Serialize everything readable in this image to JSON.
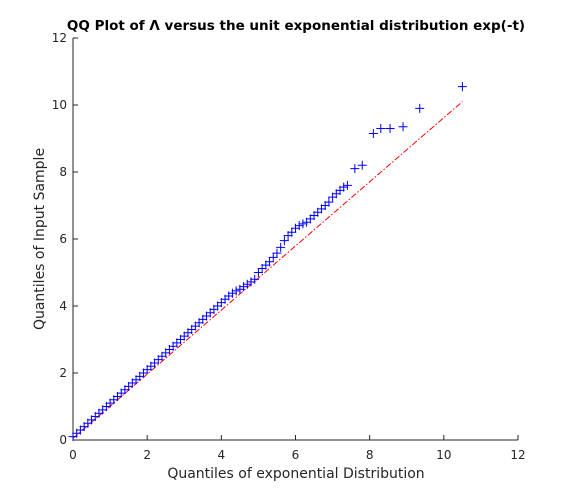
{
  "chart_data": {
    "type": "scatter",
    "title": "QQ Plot of Λ versus the unit exponential distribution exp(-t)",
    "xlabel": "Quantiles of exponential Distribution",
    "ylabel": "Quantiles of Input Sample",
    "color": "#0000ff",
    "marker": "+",
    "x": [
      0,
      0.1,
      0.2,
      0.3,
      0.4,
      0.5,
      0.6,
      0.7,
      0.8,
      0.9,
      1,
      1.1,
      1.2,
      1.3,
      1.4,
      1.5,
      1.6,
      1.7,
      1.8,
      1.9,
      2,
      2.1,
      2.2,
      2.3,
      2.4,
      2.5,
      2.6,
      2.7,
      2.8,
      2.9,
      3,
      3.1,
      3.2,
      3.3,
      3.4,
      3.5,
      3.6,
      3.7,
      3.8,
      3.9,
      4,
      4.1,
      4.2,
      4.3,
      4.4,
      4.5,
      4.6,
      4.7,
      4.8,
      4.9,
      5,
      5.1,
      5.2,
      5.3,
      5.4,
      5.5,
      5.6,
      5.7,
      5.8,
      5.9,
      6,
      6.1,
      6.2,
      6.3,
      6.4,
      6.5,
      6.6,
      6.7,
      6.8,
      6.9,
      7,
      7.1,
      7.2,
      7.3,
      7.4,
      7.6,
      7.8,
      8.1,
      8.3,
      8.55,
      8.9,
      9.35,
      10.5
    ],
    "y": [
      0.1,
      0.2,
      0.3,
      0.4,
      0.5,
      0.6,
      0.7,
      0.8,
      0.9,
      1,
      1.1,
      1.2,
      1.3,
      1.4,
      1.5,
      1.6,
      1.7,
      1.8,
      1.9,
      2,
      2.1,
      2.2,
      2.3,
      2.4,
      2.5,
      2.6,
      2.7,
      2.8,
      2.9,
      3,
      3.1,
      3.2,
      3.3,
      3.4,
      3.5,
      3.6,
      3.7,
      3.8,
      3.9,
      4,
      4.1,
      4.2,
      4.3,
      4.38,
      4.45,
      4.5,
      4.58,
      4.65,
      4.72,
      4.8,
      5,
      5.12,
      5.22,
      5.32,
      5.45,
      5.58,
      5.75,
      5.95,
      6.1,
      6.2,
      6.32,
      6.4,
      6.45,
      6.5,
      6.6,
      6.7,
      6.8,
      6.9,
      7,
      7.1,
      7.25,
      7.35,
      7.45,
      7.55,
      7.6,
      8.1,
      8.2,
      9.15,
      9.3,
      9.3,
      9.35,
      9.9,
      10.55
    ],
    "reference_line": {
      "x": [
        0,
        10.5
      ],
      "y": [
        0.05,
        10.1
      ],
      "color": "#ff0000"
    },
    "xlim": [
      0,
      12
    ],
    "ylim": [
      0,
      12
    ],
    "xticks": [
      0,
      2,
      4,
      6,
      8,
      10,
      12
    ],
    "yticks": [
      0,
      2,
      4,
      6,
      8,
      10,
      12
    ]
  }
}
